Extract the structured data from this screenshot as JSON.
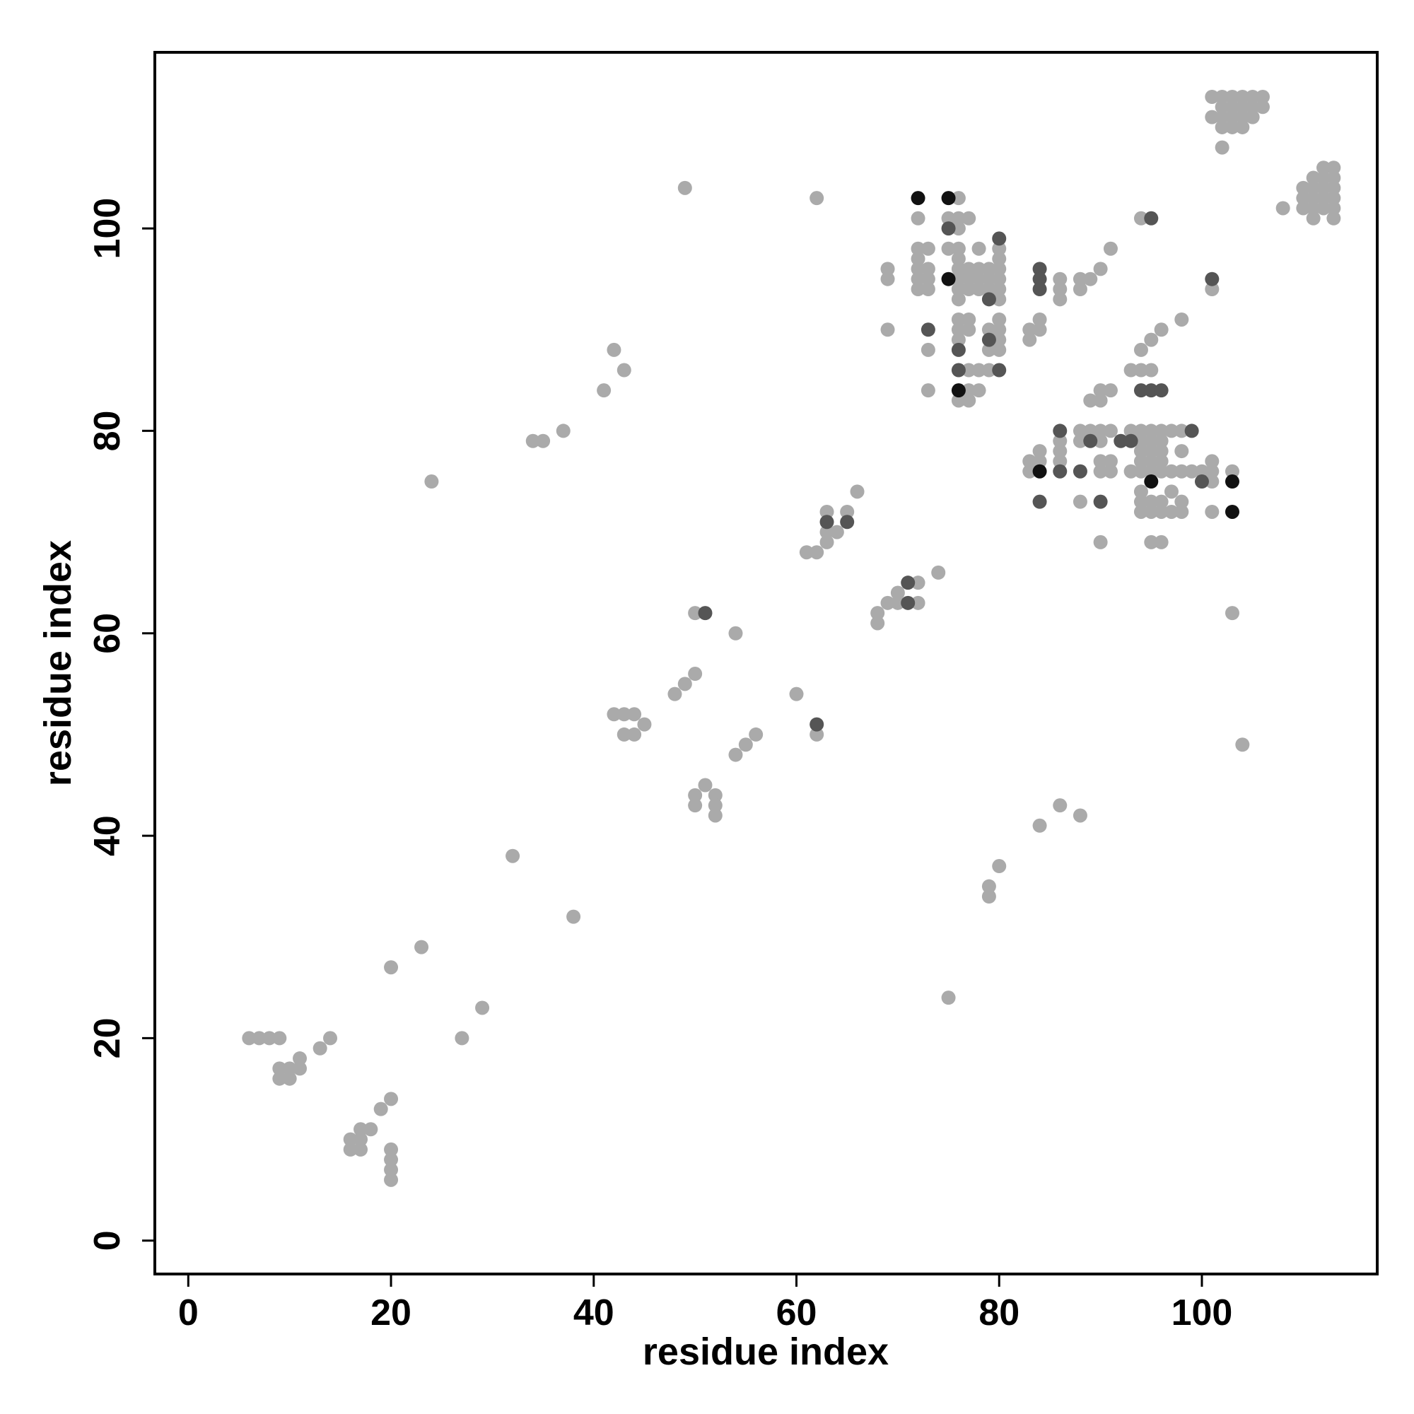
{
  "chart_data": {
    "type": "scatter",
    "xlabel": "residue index",
    "ylabel": "residue index",
    "xlim": [
      -3.3,
      117.3
    ],
    "ylim": [
      -3.3,
      117.4
    ],
    "xticks": [
      0,
      20,
      40,
      60,
      80,
      100
    ],
    "yticks": [
      0,
      20,
      40,
      60,
      80,
      100
    ],
    "series": [
      {
        "color": "#aaaaaa",
        "x": [
          6,
          7,
          8,
          9,
          9,
          10,
          11,
          11,
          9,
          10,
          13,
          14,
          16,
          17,
          16,
          17,
          17,
          18,
          19,
          20,
          20,
          20,
          20,
          20,
          20,
          23,
          24,
          27,
          29,
          32,
          34,
          35,
          37,
          38,
          41,
          42,
          43,
          42,
          43,
          44,
          43,
          44,
          45,
          48,
          49,
          50,
          49,
          50,
          50,
          50,
          51,
          52,
          52,
          52,
          54,
          54,
          55,
          56,
          60,
          61,
          62,
          62,
          62,
          63,
          63,
          63,
          64,
          65,
          66,
          68,
          68,
          69,
          70,
          70,
          72,
          72,
          74,
          69,
          69,
          69,
          72,
          72,
          72,
          72,
          72,
          72,
          73,
          73,
          73,
          73,
          73,
          73,
          75,
          75,
          76,
          76,
          76,
          76,
          76,
          76,
          76,
          76,
          76,
          76,
          76,
          76,
          76,
          77,
          77,
          77,
          77,
          77,
          77,
          77,
          77,
          77,
          78,
          78,
          78,
          78,
          78,
          78,
          79,
          79,
          79,
          79,
          79,
          79,
          80,
          80,
          80,
          80,
          80,
          80,
          80,
          80,
          80,
          80,
          83,
          83,
          84,
          84,
          83,
          83,
          84,
          84,
          86,
          86,
          86,
          86,
          86,
          86,
          88,
          88,
          89,
          90,
          91,
          89,
          90,
          90,
          91,
          88,
          88,
          88,
          89,
          90,
          90,
          90,
          90,
          91,
          91,
          91,
          90,
          93,
          94,
          95,
          94,
          95,
          96,
          98,
          94,
          93,
          93,
          94,
          94,
          94,
          94,
          94,
          94,
          94,
          94,
          95,
          95,
          95,
          95,
          95,
          95,
          95,
          95,
          96,
          96,
          96,
          96,
          96,
          96,
          96,
          96,
          97,
          97,
          97,
          97,
          98,
          98,
          98,
          98,
          98,
          99,
          100,
          101,
          101,
          101,
          101,
          101,
          103,
          103,
          104,
          75,
          79,
          79,
          80,
          84,
          86,
          88,
          101,
          102,
          103,
          104,
          105,
          106,
          101,
          102,
          103,
          104,
          105,
          102,
          103,
          104,
          105,
          106,
          102,
          103,
          104,
          102,
          108,
          110,
          110,
          110,
          111,
          111,
          111,
          111,
          111,
          112,
          112,
          112,
          112,
          112,
          113,
          113,
          113,
          113,
          113,
          113
        ],
        "y": [
          20,
          20,
          20,
          20,
          17,
          17,
          17,
          18,
          16,
          16,
          19,
          20,
          10,
          10,
          9,
          9,
          11,
          11,
          13,
          14,
          9,
          8,
          7,
          6,
          27,
          29,
          75,
          20,
          23,
          38,
          79,
          79,
          80,
          32,
          84,
          88,
          86,
          52,
          52,
          52,
          50,
          50,
          51,
          54,
          55,
          56,
          104,
          62,
          44,
          43,
          45,
          44,
          43,
          42,
          60,
          48,
          49,
          50,
          54,
          68,
          68,
          50,
          103,
          72,
          70,
          69,
          70,
          72,
          74,
          62,
          61,
          63,
          64,
          63,
          65,
          63,
          66,
          96,
          95,
          90,
          101,
          98,
          97,
          96,
          95,
          94,
          98,
          96,
          95,
          94,
          88,
          84,
          101,
          98,
          103,
          101,
          100,
          98,
          97,
          96,
          95,
          94,
          93,
          91,
          90,
          89,
          83,
          101,
          96,
          95,
          94,
          91,
          90,
          86,
          84,
          83,
          98,
          96,
          95,
          94,
          86,
          84,
          96,
          95,
          94,
          90,
          88,
          86,
          98,
          97,
          96,
          95,
          94,
          93,
          91,
          90,
          89,
          88,
          90,
          89,
          91,
          90,
          77,
          76,
          78,
          77,
          95,
          94,
          93,
          79,
          78,
          77,
          95,
          94,
          95,
          96,
          98,
          83,
          84,
          83,
          84,
          80,
          79,
          73,
          80,
          80,
          79,
          77,
          76,
          80,
          77,
          76,
          69,
          86,
          86,
          86,
          88,
          89,
          90,
          91,
          101,
          80,
          76,
          80,
          79,
          78,
          77,
          76,
          74,
          73,
          72,
          80,
          79,
          78,
          77,
          76,
          73,
          72,
          69,
          80,
          79,
          78,
          77,
          76,
          73,
          72,
          69,
          80,
          76,
          74,
          72,
          80,
          78,
          76,
          73,
          72,
          76,
          76,
          77,
          76,
          75,
          72,
          94,
          76,
          62,
          49,
          24,
          35,
          34,
          37,
          41,
          43,
          42,
          113,
          113,
          113,
          113,
          113,
          113,
          111,
          111,
          111,
          111,
          111,
          112,
          112,
          112,
          112,
          112,
          110,
          110,
          110,
          108,
          102,
          104,
          103,
          102,
          105,
          104,
          103,
          102,
          101,
          106,
          105,
          104,
          103,
          102,
          106,
          105,
          104,
          103,
          102,
          101
        ]
      },
      {
        "color": "#555555",
        "x": [
          51,
          62,
          63,
          65,
          71,
          71,
          73,
          75,
          76,
          76,
          79,
          79,
          80,
          80,
          84,
          84,
          84,
          84,
          86,
          86,
          88,
          89,
          90,
          92,
          94,
          95,
          95,
          96,
          99,
          100,
          101,
          93
        ],
        "y": [
          62,
          51,
          71,
          71,
          65,
          63,
          90,
          100,
          88,
          86,
          93,
          89,
          99,
          86,
          96,
          95,
          94,
          73,
          80,
          76,
          76,
          79,
          73,
          79,
          84,
          101,
          84,
          84,
          80,
          75,
          95,
          79
        ]
      },
      {
        "color": "#111111",
        "x": [
          72,
          75,
          75,
          76,
          84,
          95,
          103,
          103
        ],
        "y": [
          103,
          103,
          95,
          84,
          76,
          75,
          75,
          72
        ]
      }
    ]
  }
}
